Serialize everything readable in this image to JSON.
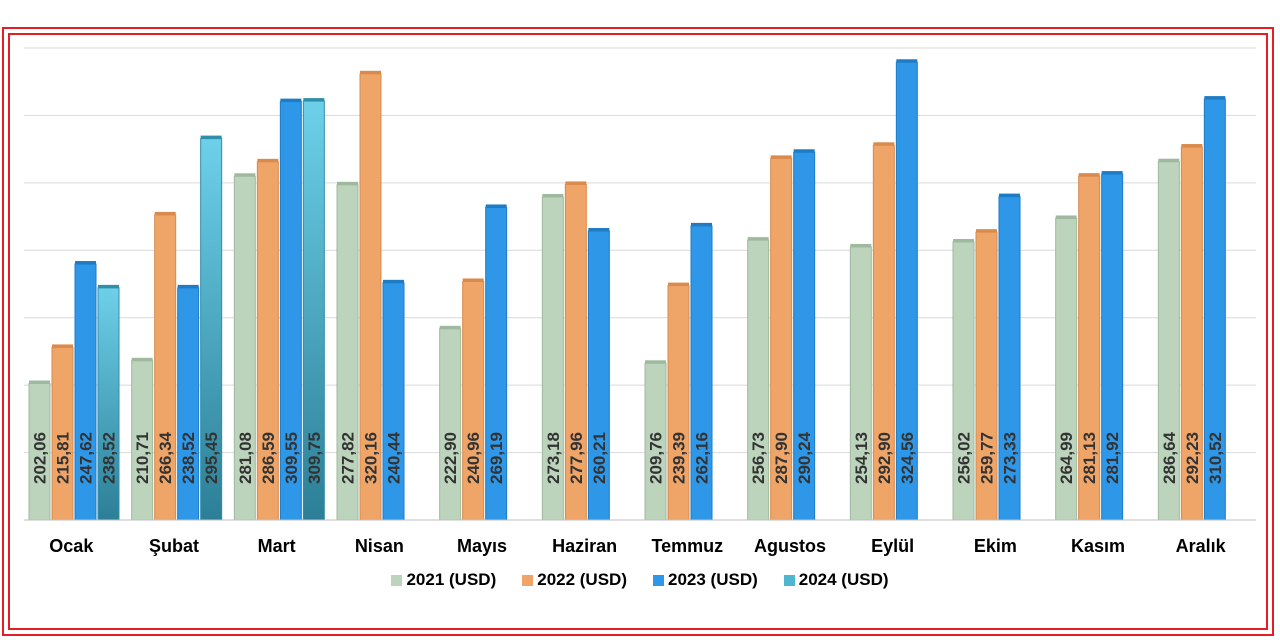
{
  "chart_data": {
    "type": "bar",
    "title": "",
    "xlabel": "",
    "ylabel": "",
    "ylim": [
      150,
      330
    ],
    "grid": true,
    "legend_position": "bottom",
    "categories": [
      "Ocak",
      "Şubat",
      "Mart",
      "Nisan",
      "Mayıs",
      "Haziran",
      "Temmuz",
      "Agustos",
      "Eylül",
      "Ekim",
      "Kasım",
      "Aralık"
    ],
    "series": [
      {
        "name": "2021 (USD)",
        "color": "#bcd3bc",
        "values": [
          202.06,
          210.71,
          281.08,
          277.82,
          222.9,
          273.18,
          209.76,
          256.73,
          254.13,
          256.02,
          264.99,
          286.64
        ],
        "labels": [
          "202,06",
          "210,71",
          "281,08",
          "277,82",
          "222,90",
          "273,18",
          "209,76",
          "256,73",
          "254,13",
          "256,02",
          "264,99",
          "286,64"
        ]
      },
      {
        "name": "2022 (USD)",
        "color": "#efa468",
        "values": [
          215.81,
          266.34,
          286.59,
          320.16,
          240.96,
          277.96,
          239.39,
          287.9,
          292.9,
          259.77,
          281.13,
          292.23
        ],
        "labels": [
          "215,81",
          "266,34",
          "286,59",
          "320,16",
          "240,96",
          "277,96",
          "239,39",
          "287,90",
          "292,90",
          "259,77",
          "281,13",
          "292,23"
        ]
      },
      {
        "name": "2023 (USD)",
        "color": "#2e97e8",
        "values": [
          247.62,
          238.52,
          309.55,
          240.44,
          269.19,
          260.21,
          262.16,
          290.24,
          324.56,
          273.33,
          281.92,
          310.52
        ],
        "labels": [
          "247,62",
          "238,52",
          "309,55",
          "240,44",
          "269,19",
          "260,21",
          "262,16",
          "290,24",
          "324,56",
          "273,33",
          "281,92",
          "310,52"
        ]
      },
      {
        "name": "2024 (USD)",
        "color": "#4fb6d2",
        "values": [
          238.52,
          295.45,
          309.75,
          null,
          null,
          null,
          null,
          null,
          null,
          null,
          null,
          null
        ],
        "labels": [
          "238,52",
          "295,45",
          "309,75",
          "",
          "",
          "",
          "",
          "",
          "",
          "",
          "",
          ""
        ]
      }
    ]
  }
}
